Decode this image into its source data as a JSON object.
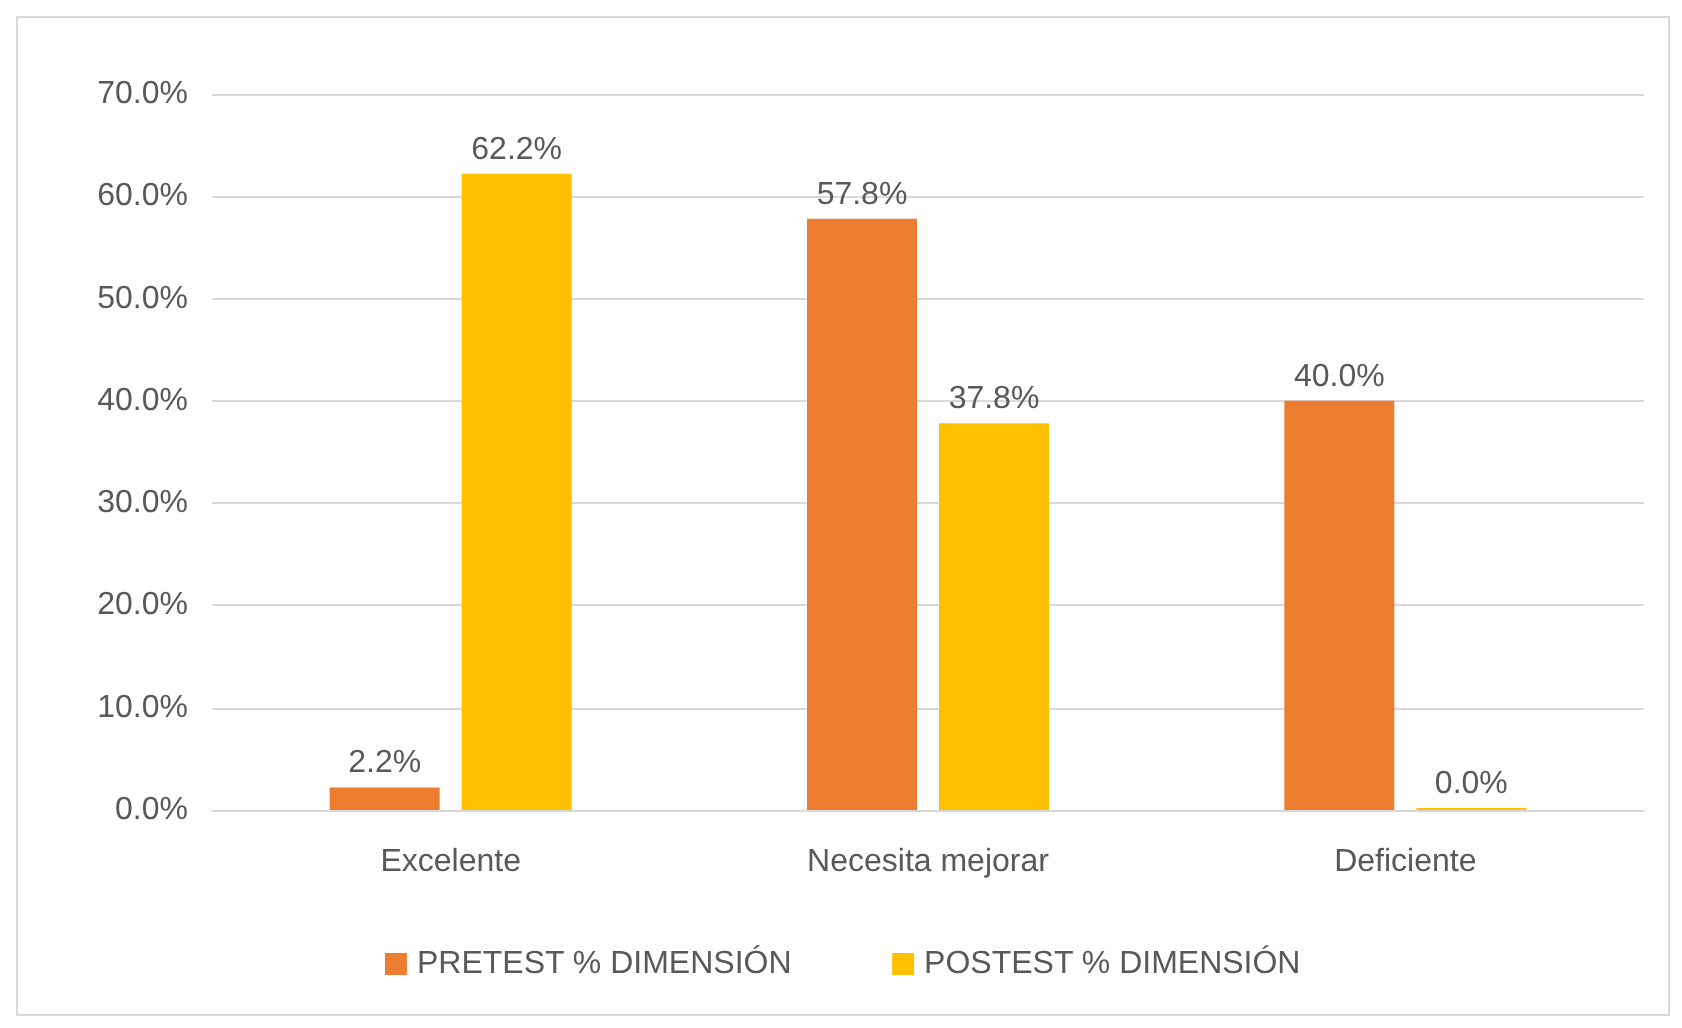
{
  "chart_data": {
    "type": "bar",
    "categories": [
      "Excelente",
      "Necesita mejorar",
      "Deficiente"
    ],
    "series": [
      {
        "name": "PRETEST % DIMENSIÓN",
        "color": "#ed7d31",
        "values": [
          2.2,
          57.8,
          40.0
        ],
        "value_labels": [
          "2.2%",
          "57.8%",
          "40.0%"
        ]
      },
      {
        "name": "POSTEST % DIMENSIÓN",
        "color": "#ffc000",
        "values": [
          62.2,
          37.8,
          0.0
        ],
        "value_labels": [
          "62.2%",
          "37.8%",
          "0.0%"
        ]
      }
    ],
    "ylim": [
      0,
      70
    ],
    "yticks": [
      {
        "value": 0,
        "label": "0.0%"
      },
      {
        "value": 10,
        "label": "10.0%"
      },
      {
        "value": 20,
        "label": "20.0%"
      },
      {
        "value": 30,
        "label": "30.0%"
      },
      {
        "value": 40,
        "label": "40.0%"
      },
      {
        "value": 50,
        "label": "50.0%"
      },
      {
        "value": 60,
        "label": "60.0%"
      },
      {
        "value": 70,
        "label": "70.0%"
      }
    ],
    "grid": "y",
    "legend": "bottom"
  }
}
